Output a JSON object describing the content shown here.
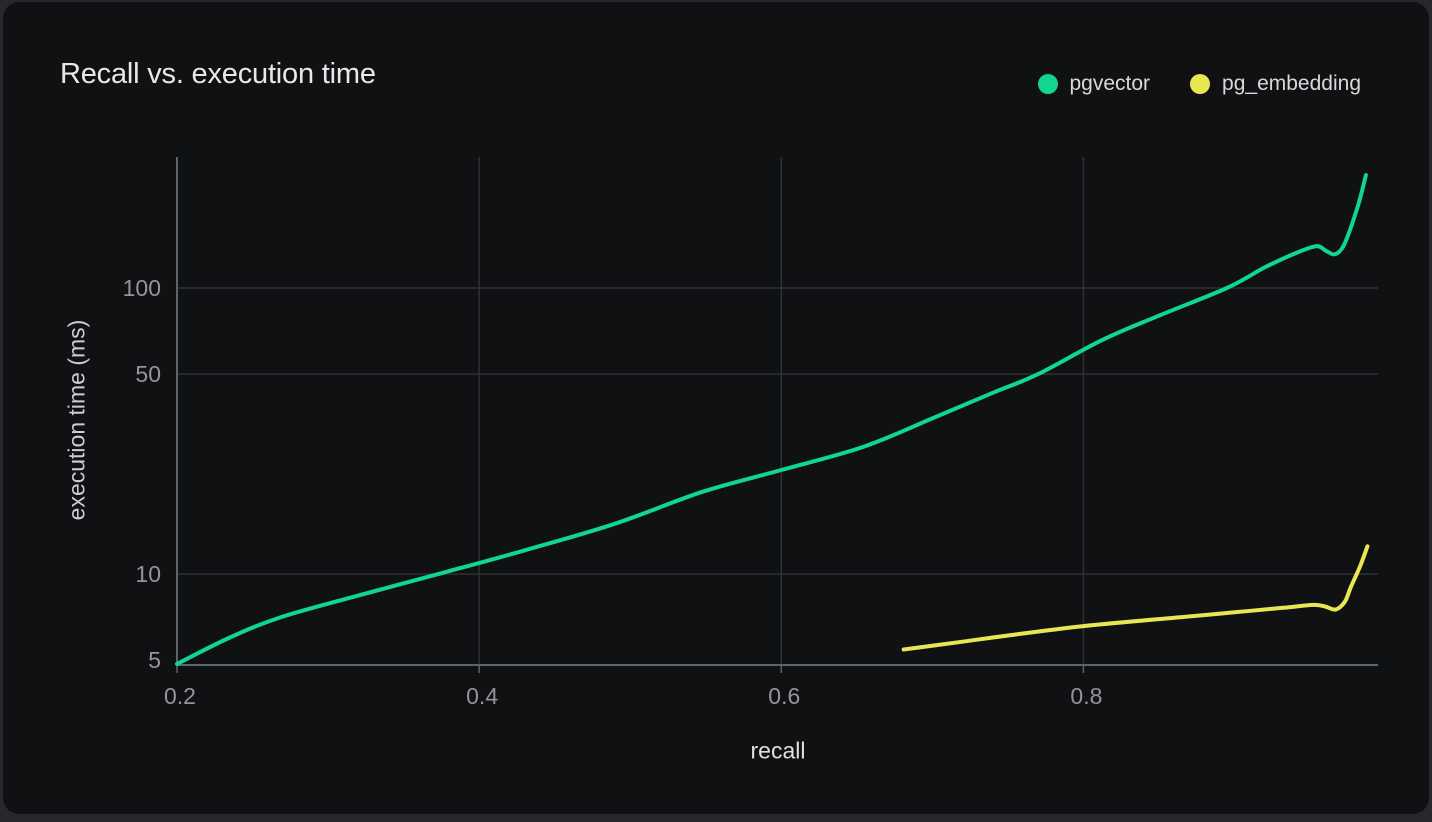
{
  "card": {
    "title": "Recall vs. execution time"
  },
  "legend": [
    {
      "label": "pgvector",
      "color": "#10d690"
    },
    {
      "label": "pg_embedding",
      "color": "#e9e654"
    }
  ],
  "chart_data": {
    "type": "line",
    "title": "Recall vs. execution time",
    "xlabel": "recall",
    "ylabel": "execution time (ms)",
    "x_scale": "linear",
    "y_scale": "log",
    "xlim": [
      0.2,
      0.995
    ],
    "ylim": [
      4.81,
      287
    ],
    "x_ticks": [
      0.2,
      0.4,
      0.6,
      0.8
    ],
    "y_ticks": [
      5,
      10,
      50,
      100
    ],
    "grid": true,
    "legend_position": "top-right",
    "series": [
      {
        "name": "pgvector",
        "color": "#10d690",
        "points": [
          [
            0.2,
            4.85
          ],
          [
            0.235,
            6.0
          ],
          [
            0.27,
            7.1
          ],
          [
            0.323,
            8.5
          ],
          [
            0.376,
            10.1
          ],
          [
            0.43,
            12.1
          ],
          [
            0.49,
            15.0
          ],
          [
            0.548,
            19.4
          ],
          [
            0.6,
            23.1
          ],
          [
            0.654,
            27.8
          ],
          [
            0.7,
            35.0
          ],
          [
            0.74,
            43.0
          ],
          [
            0.77,
            50.0
          ],
          [
            0.813,
            66.0
          ],
          [
            0.85,
            80.0
          ],
          [
            0.895,
            100.0
          ],
          [
            0.92,
            118.0
          ],
          [
            0.94,
            132.0
          ],
          [
            0.954,
            140.0
          ],
          [
            0.961,
            134.5
          ],
          [
            0.966,
            131.0
          ],
          [
            0.971,
            137.0
          ],
          [
            0.975,
            152.0
          ],
          [
            0.982,
            196.0
          ],
          [
            0.987,
            248.0
          ]
        ]
      },
      {
        "name": "pg_embedding",
        "color": "#e9e654",
        "points": [
          [
            0.681,
            5.45
          ],
          [
            0.72,
            5.8
          ],
          [
            0.747,
            6.07
          ],
          [
            0.8,
            6.58
          ],
          [
            0.866,
            7.08
          ],
          [
            0.9,
            7.35
          ],
          [
            0.932,
            7.62
          ],
          [
            0.952,
            7.8
          ],
          [
            0.96,
            7.7
          ],
          [
            0.967,
            7.52
          ],
          [
            0.973,
            8.0
          ],
          [
            0.977,
            9.0
          ],
          [
            0.983,
            10.6
          ],
          [
            0.988,
            12.5
          ]
        ]
      }
    ]
  },
  "theme": {
    "page_bg": "#28282c",
    "card_bg": "#101113",
    "grid": "#2e3137",
    "axis": "#5c6470",
    "tick_text": "#94949b",
    "title_text": "#e8e8ea",
    "legend_text": "#d9d9dc",
    "xlabel_text": "#e0e0e3",
    "ylabel_text": "#cdcdd2"
  }
}
